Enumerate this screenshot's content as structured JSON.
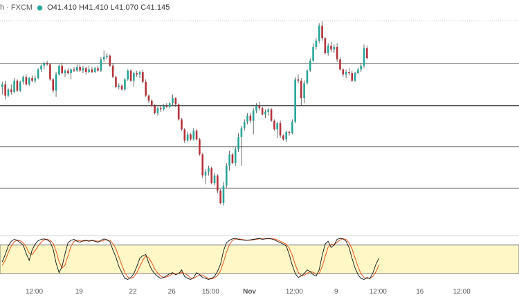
{
  "header": {
    "symbol": "h · FXCM",
    "ohlc": "O41.410 H41.410 L41.070 C41.145",
    "status_color": "#26a69a"
  },
  "chart_data": {
    "type": "candlestick",
    "colors": {
      "up": "#26a69a",
      "down": "#b5313a",
      "stoch_k": "#111111",
      "stoch_d": "#e8541c",
      "band": "#fff8c6"
    },
    "price_ylim": [
      36.4,
      45.0
    ],
    "hlines": [
      43.3,
      41.6,
      39.95,
      38.3
    ],
    "x_ticks": [
      {
        "label": "12:00",
        "i": 11
      },
      {
        "label": "19",
        "i": 26
      },
      {
        "label": "22",
        "i": 44
      },
      {
        "label": "26",
        "i": 57
      },
      {
        "label": "15:00",
        "i": 70
      },
      {
        "label": "Nov",
        "i": 83
      },
      {
        "label": "12:00",
        "i": 98
      },
      {
        "label": "9",
        "i": 112
      },
      {
        "label": "12:00",
        "i": 126
      },
      {
        "label": "16",
        "i": 140
      },
      {
        "label": "12:00",
        "i": 154
      }
    ],
    "candles": [
      {
        "o": 42.35,
        "h": 42.55,
        "l": 42.05,
        "c": 42.45
      },
      {
        "o": 42.45,
        "h": 42.6,
        "l": 41.85,
        "c": 42.0
      },
      {
        "o": 42.0,
        "h": 42.3,
        "l": 41.95,
        "c": 42.25
      },
      {
        "o": 42.25,
        "h": 42.45,
        "l": 42.05,
        "c": 42.15
      },
      {
        "o": 42.15,
        "h": 42.7,
        "l": 42.1,
        "c": 42.6
      },
      {
        "o": 42.6,
        "h": 42.65,
        "l": 42.15,
        "c": 42.2
      },
      {
        "o": 42.2,
        "h": 42.6,
        "l": 42.15,
        "c": 42.55
      },
      {
        "o": 42.55,
        "h": 42.8,
        "l": 42.45,
        "c": 42.75
      },
      {
        "o": 42.75,
        "h": 42.85,
        "l": 42.4,
        "c": 42.45
      },
      {
        "o": 42.45,
        "h": 42.75,
        "l": 42.4,
        "c": 42.7
      },
      {
        "o": 42.7,
        "h": 42.8,
        "l": 42.55,
        "c": 42.6
      },
      {
        "o": 42.6,
        "h": 42.8,
        "l": 42.5,
        "c": 42.7
      },
      {
        "o": 42.7,
        "h": 43.1,
        "l": 42.65,
        "c": 43.05
      },
      {
        "o": 43.05,
        "h": 43.25,
        "l": 42.95,
        "c": 43.2
      },
      {
        "o": 43.2,
        "h": 43.35,
        "l": 43.05,
        "c": 43.3
      },
      {
        "o": 43.3,
        "h": 43.4,
        "l": 43.2,
        "c": 43.25
      },
      {
        "o": 43.25,
        "h": 43.3,
        "l": 42.6,
        "c": 42.65
      },
      {
        "o": 42.65,
        "h": 42.7,
        "l": 42.1,
        "c": 42.2
      },
      {
        "o": 42.2,
        "h": 42.95,
        "l": 41.95,
        "c": 42.85
      },
      {
        "o": 42.85,
        "h": 43.25,
        "l": 42.8,
        "c": 43.2
      },
      {
        "o": 43.2,
        "h": 43.3,
        "l": 42.85,
        "c": 42.9
      },
      {
        "o": 42.9,
        "h": 43.05,
        "l": 42.75,
        "c": 43.0
      },
      {
        "o": 43.0,
        "h": 43.1,
        "l": 42.85,
        "c": 42.9
      },
      {
        "o": 42.9,
        "h": 43.1,
        "l": 42.65,
        "c": 43.05
      },
      {
        "o": 43.05,
        "h": 43.15,
        "l": 42.95,
        "c": 43.0
      },
      {
        "o": 43.0,
        "h": 43.25,
        "l": 42.95,
        "c": 43.15
      },
      {
        "o": 43.15,
        "h": 43.25,
        "l": 42.95,
        "c": 43.0
      },
      {
        "o": 43.0,
        "h": 43.2,
        "l": 42.9,
        "c": 43.1
      },
      {
        "o": 43.1,
        "h": 43.15,
        "l": 42.85,
        "c": 42.95
      },
      {
        "o": 42.95,
        "h": 43.2,
        "l": 42.9,
        "c": 43.05
      },
      {
        "o": 43.05,
        "h": 43.15,
        "l": 42.9,
        "c": 42.95
      },
      {
        "o": 42.95,
        "h": 43.15,
        "l": 42.9,
        "c": 43.1
      },
      {
        "o": 43.1,
        "h": 43.2,
        "l": 42.95,
        "c": 43.0
      },
      {
        "o": 43.0,
        "h": 43.55,
        "l": 42.95,
        "c": 43.45
      },
      {
        "o": 43.45,
        "h": 43.8,
        "l": 43.35,
        "c": 43.55
      },
      {
        "o": 43.55,
        "h": 43.7,
        "l": 43.45,
        "c": 43.6
      },
      {
        "o": 43.6,
        "h": 43.65,
        "l": 43.15,
        "c": 43.2
      },
      {
        "o": 43.2,
        "h": 43.3,
        "l": 42.7,
        "c": 42.75
      },
      {
        "o": 42.75,
        "h": 42.8,
        "l": 42.3,
        "c": 42.35
      },
      {
        "o": 42.35,
        "h": 42.5,
        "l": 42.25,
        "c": 42.4
      },
      {
        "o": 42.4,
        "h": 42.45,
        "l": 42.2,
        "c": 42.25
      },
      {
        "o": 42.25,
        "h": 42.7,
        "l": 42.2,
        "c": 42.65
      },
      {
        "o": 42.65,
        "h": 43.05,
        "l": 42.6,
        "c": 43.0
      },
      {
        "o": 43.0,
        "h": 43.05,
        "l": 42.55,
        "c": 42.6
      },
      {
        "o": 42.6,
        "h": 42.95,
        "l": 42.35,
        "c": 42.9
      },
      {
        "o": 42.9,
        "h": 43.0,
        "l": 42.75,
        "c": 42.85
      },
      {
        "o": 42.85,
        "h": 43.0,
        "l": 42.7,
        "c": 42.95
      },
      {
        "o": 42.95,
        "h": 43.05,
        "l": 42.5,
        "c": 42.55
      },
      {
        "o": 42.55,
        "h": 42.65,
        "l": 41.95,
        "c": 42.0
      },
      {
        "o": 42.0,
        "h": 42.05,
        "l": 41.7,
        "c": 41.8
      },
      {
        "o": 41.8,
        "h": 41.85,
        "l": 41.55,
        "c": 41.6
      },
      {
        "o": 41.6,
        "h": 41.65,
        "l": 41.25,
        "c": 41.3
      },
      {
        "o": 41.3,
        "h": 41.55,
        "l": 41.2,
        "c": 41.5
      },
      {
        "o": 41.5,
        "h": 41.6,
        "l": 41.35,
        "c": 41.45
      },
      {
        "o": 41.45,
        "h": 41.65,
        "l": 41.4,
        "c": 41.6
      },
      {
        "o": 41.6,
        "h": 41.7,
        "l": 41.5,
        "c": 41.55
      },
      {
        "o": 41.55,
        "h": 41.75,
        "l": 41.5,
        "c": 41.7
      },
      {
        "o": 41.7,
        "h": 42.05,
        "l": 41.6,
        "c": 41.9
      },
      {
        "o": 41.9,
        "h": 41.95,
        "l": 41.55,
        "c": 41.65
      },
      {
        "o": 41.65,
        "h": 41.7,
        "l": 41.0,
        "c": 41.05
      },
      {
        "o": 41.05,
        "h": 41.1,
        "l": 40.6,
        "c": 40.65
      },
      {
        "o": 40.65,
        "h": 40.7,
        "l": 40.1,
        "c": 40.2
      },
      {
        "o": 40.2,
        "h": 40.55,
        "l": 40.15,
        "c": 40.45
      },
      {
        "o": 40.45,
        "h": 40.5,
        "l": 40.2,
        "c": 40.25
      },
      {
        "o": 40.25,
        "h": 40.7,
        "l": 40.2,
        "c": 40.6
      },
      {
        "o": 40.6,
        "h": 40.65,
        "l": 40.2,
        "c": 40.25
      },
      {
        "o": 40.25,
        "h": 40.3,
        "l": 39.6,
        "c": 39.65
      },
      {
        "o": 39.65,
        "h": 39.7,
        "l": 38.7,
        "c": 38.8
      },
      {
        "o": 38.8,
        "h": 39.05,
        "l": 38.45,
        "c": 38.95
      },
      {
        "o": 38.95,
        "h": 39.2,
        "l": 38.8,
        "c": 39.1
      },
      {
        "o": 39.1,
        "h": 39.15,
        "l": 38.45,
        "c": 38.5
      },
      {
        "o": 38.5,
        "h": 38.9,
        "l": 38.4,
        "c": 38.8
      },
      {
        "o": 38.8,
        "h": 38.85,
        "l": 38.1,
        "c": 38.2
      },
      {
        "o": 38.2,
        "h": 38.25,
        "l": 37.65,
        "c": 37.7
      },
      {
        "o": 37.7,
        "h": 38.55,
        "l": 37.6,
        "c": 38.4
      },
      {
        "o": 38.4,
        "h": 39.3,
        "l": 38.3,
        "c": 39.2
      },
      {
        "o": 39.2,
        "h": 39.8,
        "l": 39.0,
        "c": 39.65
      },
      {
        "o": 39.65,
        "h": 39.7,
        "l": 39.25,
        "c": 39.3
      },
      {
        "o": 39.3,
        "h": 39.95,
        "l": 39.2,
        "c": 39.85
      },
      {
        "o": 39.85,
        "h": 40.5,
        "l": 39.75,
        "c": 40.35
      },
      {
        "o": 40.35,
        "h": 40.8,
        "l": 39.2,
        "c": 40.7
      },
      {
        "o": 40.7,
        "h": 41.05,
        "l": 40.6,
        "c": 40.95
      },
      {
        "o": 40.95,
        "h": 41.3,
        "l": 40.85,
        "c": 41.2
      },
      {
        "o": 41.2,
        "h": 41.3,
        "l": 40.9,
        "c": 41.0
      },
      {
        "o": 41.0,
        "h": 41.5,
        "l": 40.45,
        "c": 41.4
      },
      {
        "o": 41.4,
        "h": 41.7,
        "l": 41.3,
        "c": 41.6
      },
      {
        "o": 41.6,
        "h": 41.75,
        "l": 41.4,
        "c": 41.5
      },
      {
        "o": 41.5,
        "h": 41.55,
        "l": 41.2,
        "c": 41.25
      },
      {
        "o": 41.25,
        "h": 41.45,
        "l": 41.1,
        "c": 41.35
      },
      {
        "o": 41.35,
        "h": 41.5,
        "l": 41.2,
        "c": 41.45
      },
      {
        "o": 41.45,
        "h": 41.5,
        "l": 40.95,
        "c": 41.0
      },
      {
        "o": 41.0,
        "h": 41.05,
        "l": 40.6,
        "c": 40.65
      },
      {
        "o": 40.65,
        "h": 40.95,
        "l": 40.3,
        "c": 40.9
      },
      {
        "o": 40.9,
        "h": 41.0,
        "l": 40.3,
        "c": 40.4
      },
      {
        "o": 40.4,
        "h": 40.45,
        "l": 40.2,
        "c": 40.25
      },
      {
        "o": 40.25,
        "h": 40.6,
        "l": 40.15,
        "c": 40.55
      },
      {
        "o": 40.55,
        "h": 40.6,
        "l": 40.4,
        "c": 40.5
      },
      {
        "o": 40.5,
        "h": 41.05,
        "l": 40.45,
        "c": 40.95
      },
      {
        "o": 40.95,
        "h": 42.75,
        "l": 40.9,
        "c": 42.65
      },
      {
        "o": 42.65,
        "h": 42.85,
        "l": 42.5,
        "c": 42.6
      },
      {
        "o": 42.6,
        "h": 42.7,
        "l": 41.6,
        "c": 41.9
      },
      {
        "o": 41.9,
        "h": 42.6,
        "l": 41.7,
        "c": 42.5
      },
      {
        "o": 42.5,
        "h": 43.05,
        "l": 42.45,
        "c": 43.0
      },
      {
        "o": 43.0,
        "h": 43.5,
        "l": 42.95,
        "c": 43.4
      },
      {
        "o": 43.4,
        "h": 44.1,
        "l": 43.35,
        "c": 43.95
      },
      {
        "o": 43.95,
        "h": 44.3,
        "l": 43.85,
        "c": 44.2
      },
      {
        "o": 44.2,
        "h": 44.9,
        "l": 44.1,
        "c": 44.8
      },
      {
        "o": 44.8,
        "h": 45.0,
        "l": 44.2,
        "c": 44.3
      },
      {
        "o": 44.3,
        "h": 44.35,
        "l": 43.65,
        "c": 43.7
      },
      {
        "o": 43.7,
        "h": 44.1,
        "l": 43.6,
        "c": 44.0
      },
      {
        "o": 44.0,
        "h": 44.15,
        "l": 43.75,
        "c": 43.85
      },
      {
        "o": 43.85,
        "h": 44.05,
        "l": 43.7,
        "c": 43.95
      },
      {
        "o": 43.95,
        "h": 44.1,
        "l": 43.35,
        "c": 43.45
      },
      {
        "o": 43.45,
        "h": 43.55,
        "l": 43.0,
        "c": 43.05
      },
      {
        "o": 43.05,
        "h": 43.1,
        "l": 42.75,
        "c": 42.85
      },
      {
        "o": 42.85,
        "h": 43.05,
        "l": 42.7,
        "c": 42.95
      },
      {
        "o": 42.95,
        "h": 43.1,
        "l": 42.8,
        "c": 42.9
      },
      {
        "o": 42.9,
        "h": 43.0,
        "l": 42.55,
        "c": 42.6
      },
      {
        "o": 42.6,
        "h": 42.95,
        "l": 42.55,
        "c": 42.9
      },
      {
        "o": 42.9,
        "h": 43.1,
        "l": 42.85,
        "c": 43.05
      },
      {
        "o": 43.05,
        "h": 43.3,
        "l": 42.95,
        "c": 43.2
      },
      {
        "o": 43.2,
        "h": 44.05,
        "l": 43.1,
        "c": 43.9
      },
      {
        "o": 43.9,
        "h": 44.0,
        "l": 43.45,
        "c": 43.5
      }
    ],
    "stochastic": {
      "ylim": [
        0,
        100
      ],
      "band": [
        20,
        80
      ],
      "k": [
        45,
        60,
        78,
        88,
        92,
        90,
        85,
        80,
        62,
        48,
        70,
        82,
        89,
        92,
        93,
        91,
        87,
        72,
        42,
        22,
        35,
        62,
        85,
        90,
        92,
        88,
        86,
        89,
        90,
        88,
        90,
        88,
        86,
        90,
        93,
        91,
        87,
        70,
        55,
        35,
        22,
        10,
        8,
        12,
        20,
        35,
        52,
        58,
        60,
        42,
        28,
        20,
        14,
        10,
        12,
        16,
        20,
        22,
        18,
        20,
        28,
        14,
        10,
        8,
        12,
        22,
        18,
        12,
        10,
        8,
        10,
        14,
        25,
        40,
        68,
        85,
        90,
        93,
        94,
        92,
        91,
        90,
        90,
        91,
        92,
        93,
        94,
        92,
        93,
        94,
        93,
        91,
        88,
        85,
        82,
        78,
        60,
        38,
        20,
        12,
        15,
        20,
        28,
        24,
        18,
        15,
        28,
        58,
        82,
        88,
        75,
        80,
        92,
        94,
        93,
        88,
        75,
        52,
        32,
        18,
        10,
        8,
        12,
        10,
        22,
        40,
        52
      ],
      "d": [
        38,
        48,
        64,
        78,
        87,
        90,
        89,
        85,
        76,
        63,
        60,
        68,
        78,
        86,
        91,
        92,
        90,
        84,
        67,
        45,
        32,
        38,
        58,
        78,
        88,
        90,
        89,
        88,
        89,
        89,
        89,
        89,
        88,
        88,
        90,
        91,
        90,
        83,
        72,
        55,
        38,
        22,
        13,
        10,
        13,
        22,
        35,
        48,
        57,
        53,
        43,
        30,
        21,
        15,
        12,
        13,
        16,
        20,
        20,
        20,
        23,
        20,
        17,
        11,
        10,
        14,
        17,
        17,
        13,
        10,
        9,
        11,
        16,
        26,
        44,
        65,
        81,
        90,
        92,
        93,
        92,
        91,
        90,
        90,
        91,
        92,
        93,
        93,
        93,
        93,
        93,
        93,
        91,
        88,
        85,
        82,
        73,
        59,
        39,
        23,
        16,
        16,
        21,
        24,
        23,
        19,
        20,
        34,
        56,
        76,
        82,
        81,
        86,
        91,
        93,
        92,
        85,
        72,
        53,
        34,
        20,
        12,
        10,
        10,
        14,
        24,
        38
      ]
    }
  }
}
